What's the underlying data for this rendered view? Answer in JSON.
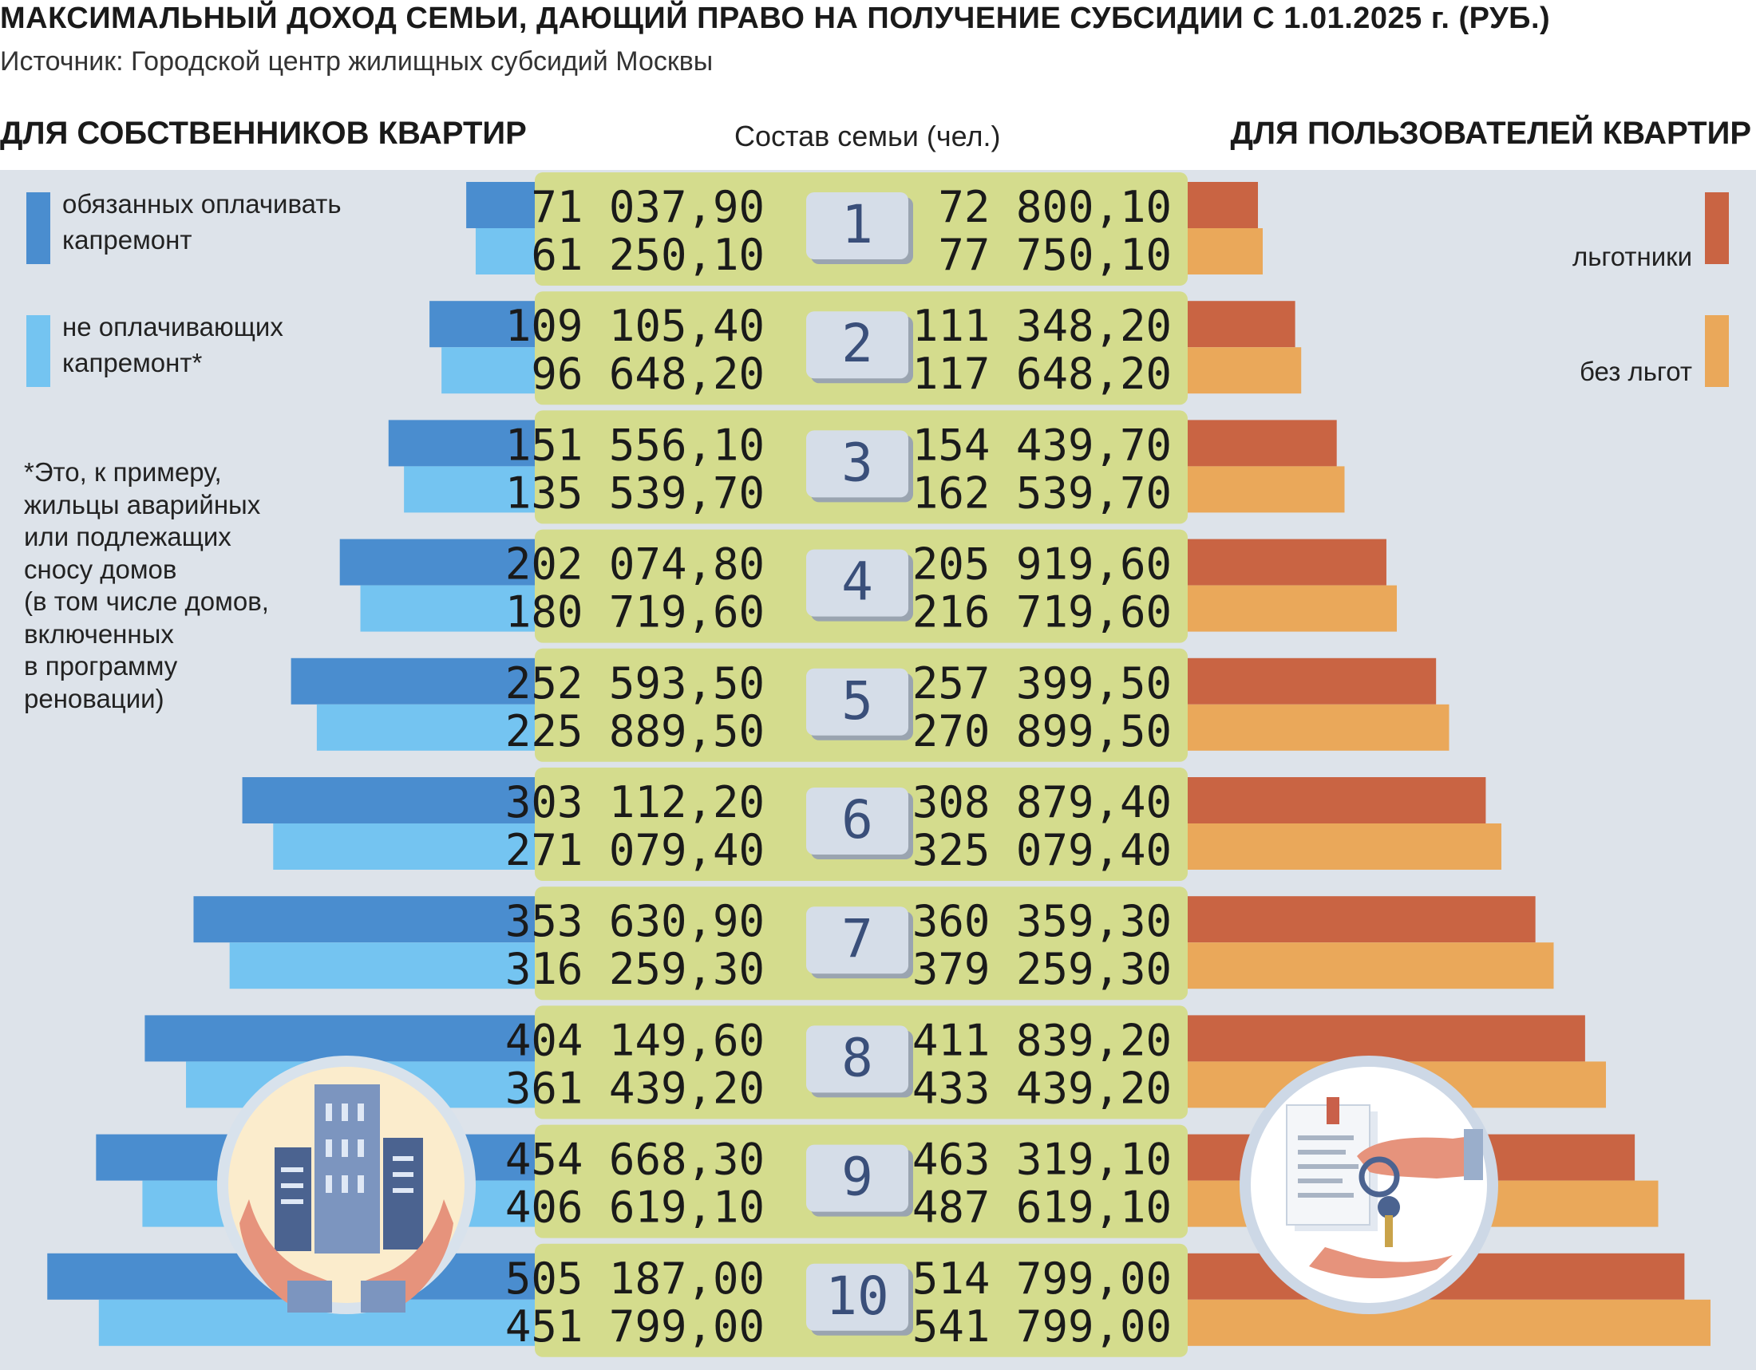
{
  "title": "МАКСИМАЛЬНЫЙ ДОХОД СЕМЬИ, ДАЮЩИЙ ПРАВО НА ПОЛУЧЕНИЕ СУБСИДИИ С 1.01.2025 г. (РУБ.)",
  "source": "Источник: Городской центр жилищных субсидий Москвы",
  "left_header": "ДЛЯ СОБСТВЕННИКОВ КВАРТИР",
  "center_header": "Состав семьи (чел.)",
  "right_header": "ДЛЯ ПОЛЬЗОВАТЕЛЕЙ КВАРТИР",
  "legend": {
    "owners_pay": "обязанных оплачивать капремонт",
    "owners_no_pay": "не оплачивающих капремонт*",
    "users_benefit": "льготники",
    "users_no_benefit": "без льгот"
  },
  "footnote": "*Это, к примеру,\nжильцы аварийных\nили подлежащих\nсносу домов\n(в том числе домов,\nвключенных\nв программу\nреновации)",
  "colors": {
    "owners_pay": "#4a8dcf",
    "owners_no_pay": "#74c4f1",
    "users_benefit": "#c96443",
    "users_no_benefit": "#eaa85a",
    "center_row": "#d4dc8d",
    "number_badge": "#d5dde8",
    "number_text": "#3a4f7a",
    "panel": "#dde3ea"
  },
  "icons": {
    "left": "buildings-in-hands-icon",
    "right": "keys-and-document-handover-icon"
  },
  "chart_data": {
    "type": "bar",
    "layout": "population-pyramid",
    "categories": [
      "1",
      "2",
      "3",
      "4",
      "5",
      "6",
      "7",
      "8",
      "9",
      "10"
    ],
    "category_label": "Состав семьи (чел.)",
    "series": [
      {
        "name": "обязанных оплачивать капремонт",
        "side": "left",
        "values": [
          "71 037,90",
          "109 105,40",
          "151 556,10",
          "202 074,80",
          "252 593,50",
          "303 112,20",
          "353 630,90",
          "404 149,60",
          "454 668,30",
          "505 187,00"
        ]
      },
      {
        "name": "не оплачивающих капремонт*",
        "side": "left",
        "values": [
          "61 250,10",
          "96 648,20",
          "135 539,70",
          "180 719,60",
          "225 889,50",
          "271 079,40",
          "316 259,30",
          "361 439,20",
          "406 619,10",
          "451 799,00"
        ]
      },
      {
        "name": "льготники",
        "side": "right",
        "values": [
          "72 800,10",
          "111 348,20",
          "154 439,70",
          "205 919,60",
          "257 399,50",
          "308 879,40",
          "360 359,30",
          "411 839,20",
          "463 319,10",
          "514 799,00"
        ]
      },
      {
        "name": "без льгот",
        "side": "right",
        "values": [
          "77 750,10",
          "117 648,20",
          "162 539,70",
          "216 719,60",
          "270 899,50",
          "325 079,40",
          "379 259,30",
          "433 439,20",
          "487 619,10",
          "541 799,00"
        ]
      }
    ]
  }
}
